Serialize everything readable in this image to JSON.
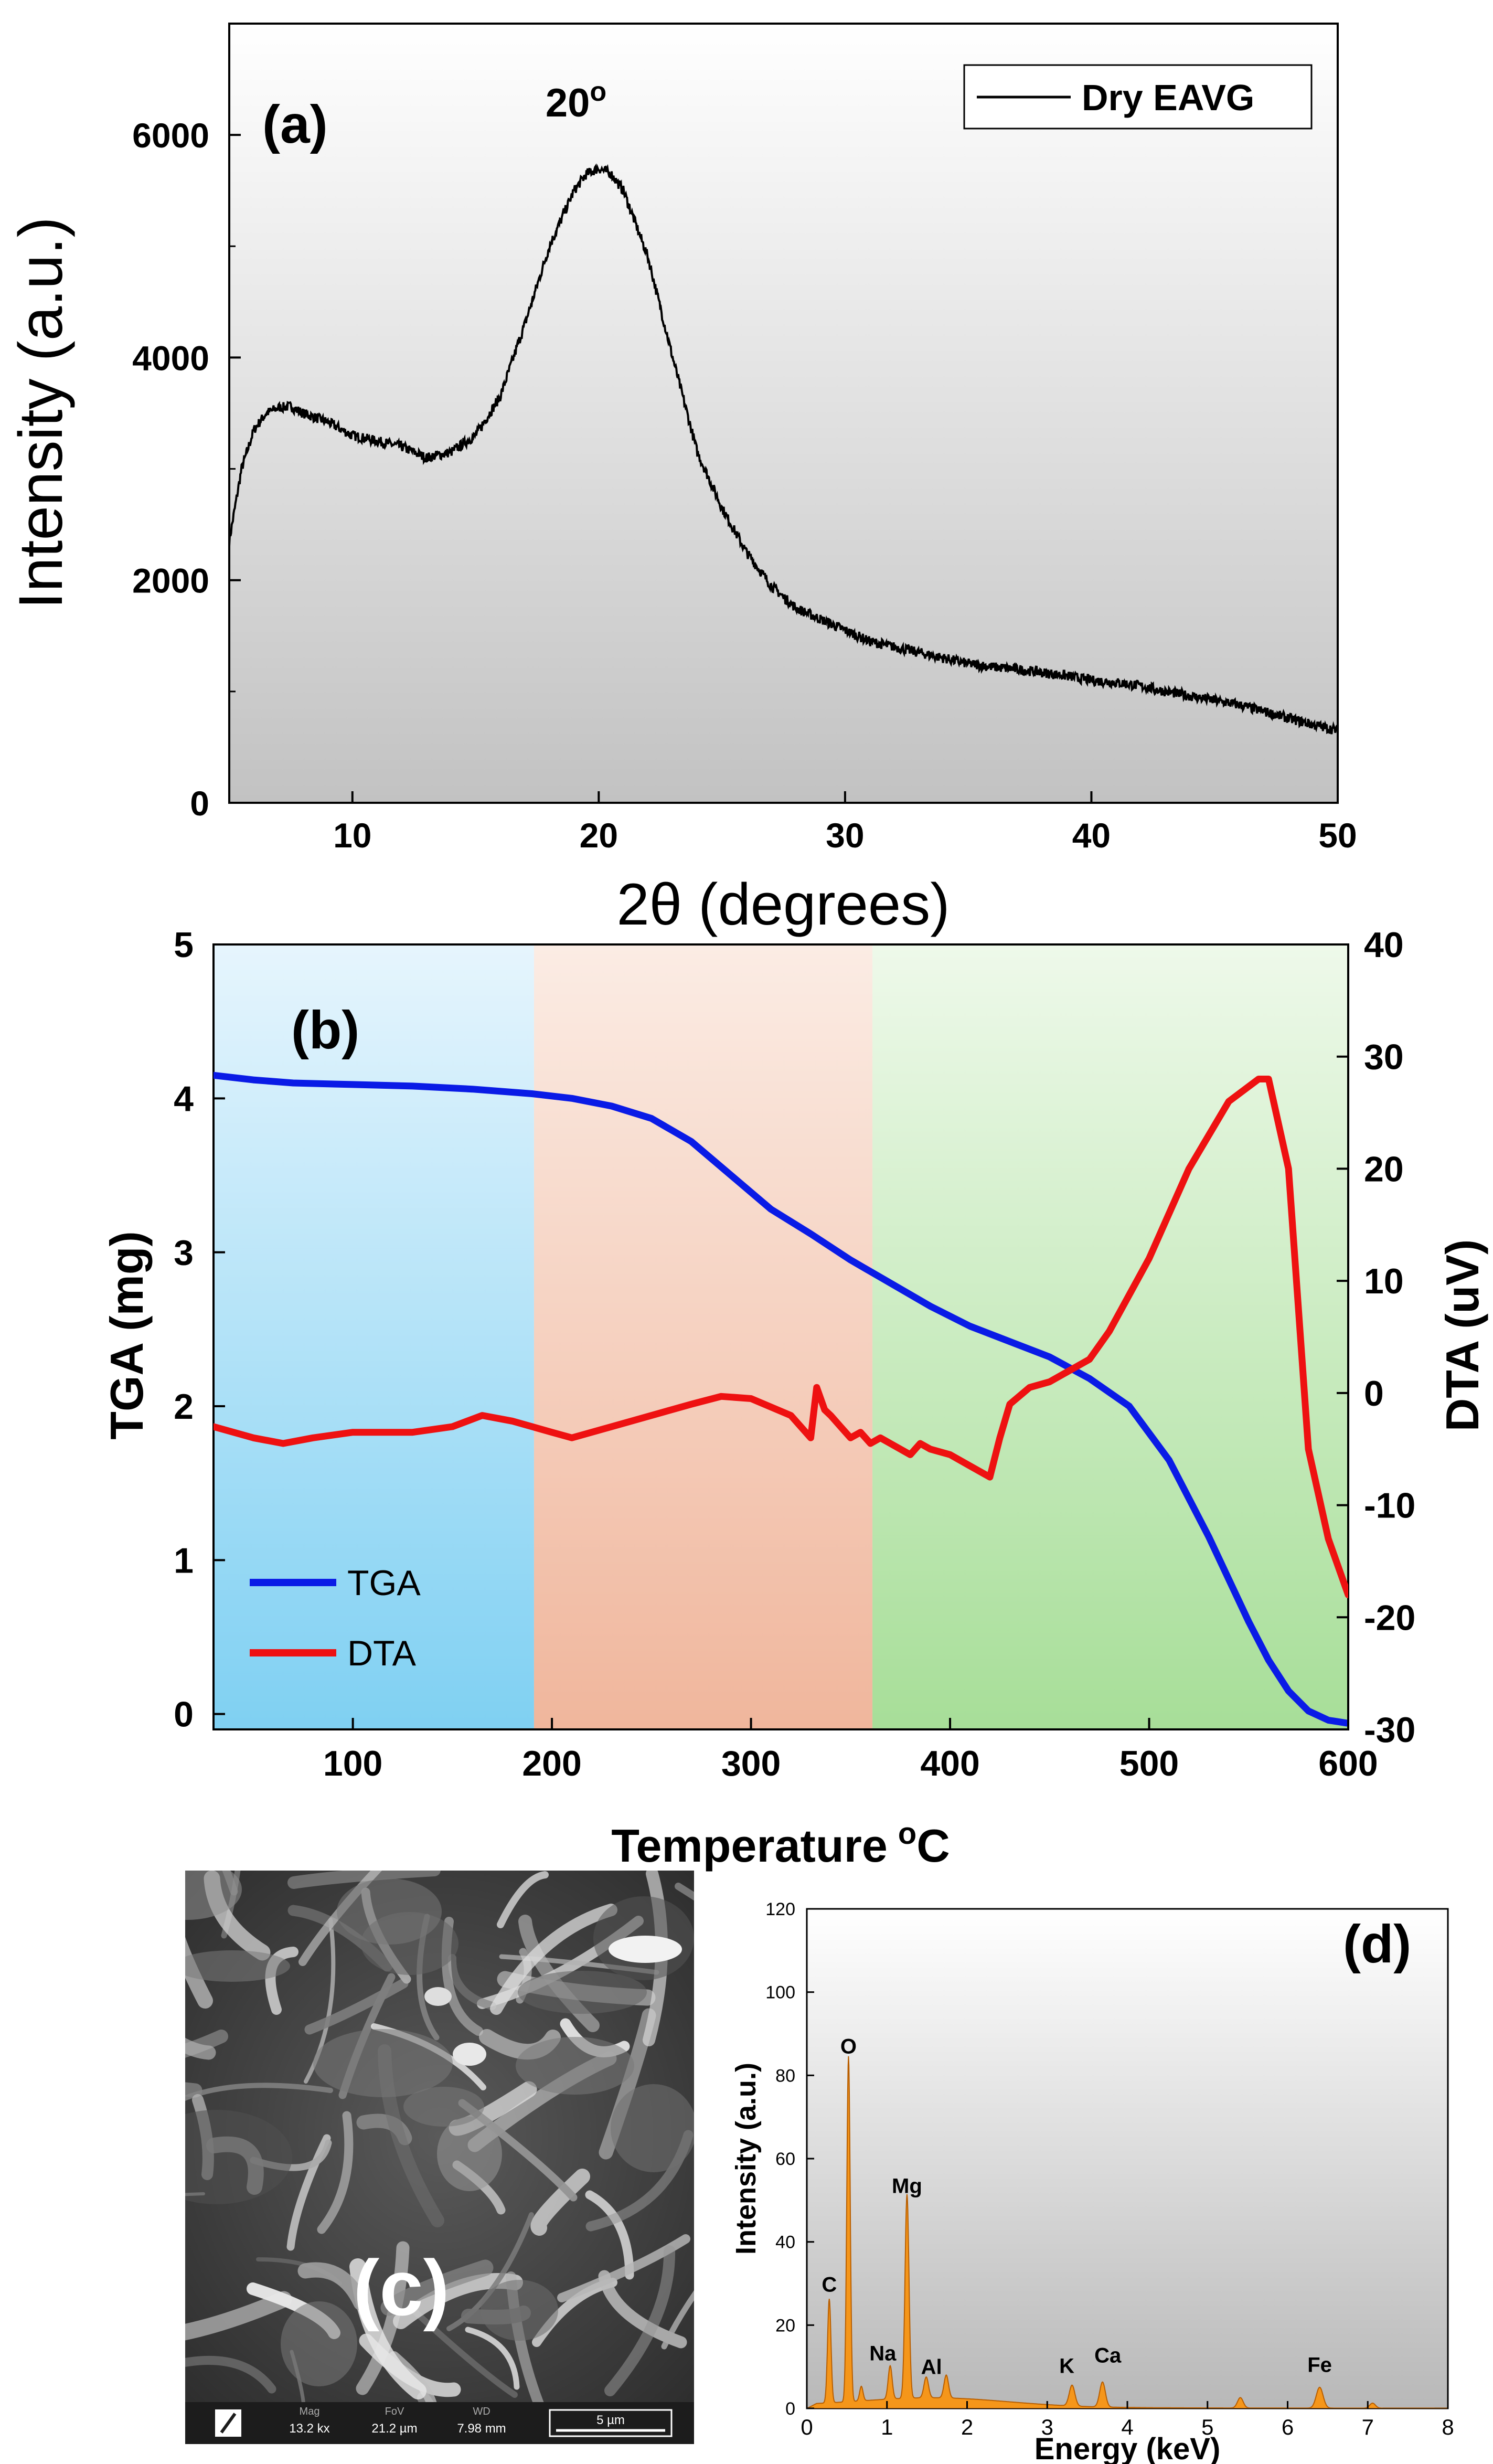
{
  "chart_data": [
    {
      "panel": "a",
      "type": "line",
      "panel_label": "(a)",
      "xlabel": "2θ (degrees)",
      "ylabel": "Intensity (a.u.)",
      "xlim": [
        5,
        50
      ],
      "ylim": [
        0,
        7000
      ],
      "xticks": [
        10,
        20,
        30,
        40,
        50
      ],
      "yticks": [
        0,
        2000,
        4000,
        6000
      ],
      "legend": "top-right",
      "annotation": {
        "text": "20",
        "sup": "o",
        "x": 20
      },
      "series": [
        {
          "name": "Dry EAVG",
          "color": "#000000",
          "x": [
            5,
            5.5,
            6,
            6.5,
            7,
            7.5,
            8,
            9,
            10,
            11,
            12,
            13,
            14,
            15,
            16,
            17,
            18,
            19,
            19.5,
            20,
            20.5,
            21,
            22,
            23,
            24,
            25,
            26,
            27,
            28,
            29,
            30,
            31,
            32,
            33,
            34,
            35,
            36,
            37,
            38,
            39,
            40,
            41,
            42,
            43,
            44,
            45,
            46,
            47,
            48,
            49,
            50
          ],
          "y": [
            2350,
            3000,
            3350,
            3500,
            3550,
            3560,
            3500,
            3420,
            3300,
            3250,
            3200,
            3100,
            3150,
            3300,
            3650,
            4300,
            5000,
            5500,
            5650,
            5700,
            5650,
            5500,
            4900,
            4000,
            3150,
            2650,
            2250,
            1950,
            1750,
            1650,
            1550,
            1450,
            1400,
            1350,
            1300,
            1250,
            1220,
            1200,
            1170,
            1140,
            1100,
            1080,
            1050,
            1000,
            960,
            920,
            880,
            820,
            760,
            700,
            650
          ]
        }
      ]
    },
    {
      "panel": "b",
      "type": "line",
      "panel_label": "(b)",
      "xlabel": "Temperature",
      "xlabel_sup": "o",
      "xlabel_unit": "C",
      "ylabel": "TGA (mg)",
      "y2label": "DTA (uV)",
      "xlim": [
        30,
        600
      ],
      "ylim": [
        -0.1,
        5
      ],
      "y2lim": [
        -30,
        40
      ],
      "xticks": [
        100,
        200,
        300,
        400,
        500,
        600
      ],
      "yticks": [
        0,
        1,
        2,
        3,
        4,
        5
      ],
      "y2ticks": [
        -30,
        -20,
        -10,
        0,
        10,
        20,
        30,
        40
      ],
      "y2ticklabels": [
        "-30",
        "-20",
        "-10",
        "0",
        "10",
        "20",
        "30",
        "40"
      ],
      "regions": [
        {
          "x0": 30,
          "x1": 191,
          "color": "#7fd0f2"
        },
        {
          "x0": 191,
          "x1": 361,
          "color": "#f0b69c"
        },
        {
          "x0": 361,
          "x1": 600,
          "color": "#a7de98"
        }
      ],
      "legend": "bottom-left",
      "series": [
        {
          "name": "TGA",
          "axis": "left",
          "color": "#0a1be6",
          "x": [
            30,
            50,
            70,
            100,
            130,
            160,
            190,
            210,
            230,
            250,
            270,
            290,
            310,
            330,
            350,
            370,
            390,
            410,
            430,
            450,
            470,
            490,
            510,
            530,
            550,
            560,
            570,
            580,
            590,
            600
          ],
          "y": [
            4.15,
            4.12,
            4.1,
            4.09,
            4.08,
            4.06,
            4.03,
            4.0,
            3.95,
            3.87,
            3.72,
            3.5,
            3.28,
            3.12,
            2.95,
            2.8,
            2.65,
            2.52,
            2.42,
            2.32,
            2.18,
            2.0,
            1.65,
            1.15,
            0.6,
            0.35,
            0.15,
            0.02,
            -0.04,
            -0.06
          ]
        },
        {
          "name": "DTA",
          "axis": "right",
          "color": "#ee1111",
          "x": [
            30,
            50,
            65,
            80,
            100,
            130,
            150,
            165,
            180,
            200,
            210,
            230,
            250,
            270,
            285,
            300,
            320,
            330,
            333,
            337,
            340,
            345,
            350,
            355,
            360,
            365,
            370,
            380,
            385,
            390,
            400,
            410,
            420,
            425,
            430,
            440,
            450,
            460,
            470,
            480,
            500,
            520,
            540,
            555,
            560,
            570,
            580,
            590,
            600
          ],
          "y": [
            -3,
            -4,
            -4.5,
            -4,
            -3.5,
            -3.5,
            -3,
            -2,
            -2.5,
            -3.5,
            -4,
            -3,
            -2,
            -1,
            -0.3,
            -0.5,
            -2,
            -4,
            0.5,
            -1.5,
            -2,
            -3,
            -4,
            -3.5,
            -4.5,
            -4,
            -4.5,
            -5.5,
            -4.5,
            -5,
            -5.5,
            -6.5,
            -7.5,
            -4,
            -1,
            0.5,
            1,
            2,
            3,
            5.5,
            12,
            20,
            26,
            28,
            28,
            20,
            -5,
            -13,
            -18
          ]
        }
      ]
    },
    {
      "panel": "c",
      "type": "image",
      "panel_label": "(c)",
      "infobar": {
        "mag_label": "Mag",
        "mag_value": "13.2 kx",
        "fov_label": "FoV",
        "fov_value": "21.2 µm",
        "wd_label": "WD",
        "wd_value": "7.98 mm",
        "scale": "5 µm"
      }
    },
    {
      "panel": "d",
      "type": "area",
      "panel_label": "(d)",
      "xlabel": "Energy (keV)",
      "ylabel": "Intensity (a.u.)",
      "xlim": [
        0,
        8
      ],
      "ylim": [
        0,
        120
      ],
      "xticks": [
        0,
        1,
        2,
        3,
        4,
        5,
        6,
        7,
        8
      ],
      "yticks": [
        0,
        20,
        40,
        60,
        80,
        100,
        120
      ],
      "fill_color": "#f5961a",
      "peaks": [
        {
          "label": "C",
          "x": 0.28,
          "y": 25
        },
        {
          "label": "O",
          "x": 0.52,
          "y": 83
        },
        {
          "label": "Na",
          "x": 1.04,
          "y": 8
        },
        {
          "label": "Mg",
          "x": 1.25,
          "y": 49
        },
        {
          "label": "Al",
          "x": 1.49,
          "y": 5
        },
        {
          "label": "K",
          "x": 3.31,
          "y": 5
        },
        {
          "label": "Ca",
          "x": 3.69,
          "y": 6
        },
        {
          "label": "Fe",
          "x": 6.4,
          "y": 5
        }
      ]
    }
  ]
}
